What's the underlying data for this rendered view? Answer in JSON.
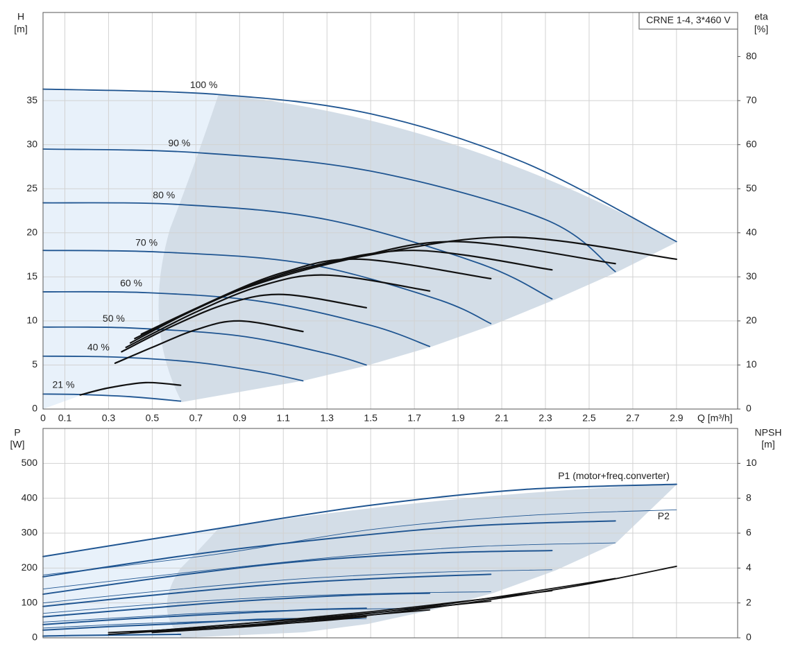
{
  "chart_data": [
    {
      "type": "line",
      "title": "CRNE 1-4, 3*460 V",
      "x_label": "Q [m³/h]",
      "y_label": "H",
      "y_unit": "[m]",
      "y2_label": "eta",
      "y2_unit": "[%]",
      "xlim": [
        0,
        3.18
      ],
      "xticks": [
        0,
        0.1,
        0.3,
        0.5,
        0.7,
        0.9,
        1.1,
        1.3,
        1.5,
        1.7,
        1.9,
        2.1,
        2.3,
        2.5,
        2.7,
        2.9
      ],
      "ylim": [
        0,
        45
      ],
      "yticks": [
        0,
        5,
        10,
        15,
        20,
        25,
        30,
        35
      ],
      "y2lim": [
        0,
        90
      ],
      "y2ticks": [
        0,
        10,
        20,
        30,
        40,
        50,
        60,
        70,
        80
      ],
      "grid": true,
      "series": [
        {
          "name": "100 %",
          "color": "#1f5591",
          "line_width": 1.8,
          "x": [
            0,
            0.8,
            1.5,
            2.2,
            2.9
          ],
          "values": [
            36.3,
            35.7,
            33.5,
            28,
            19
          ]
        },
        {
          "name": "90 %",
          "color": "#1f5591",
          "line_width": 1.8,
          "x": [
            0,
            0.7,
            1.5,
            2.3,
            2.62
          ],
          "values": [
            29.5,
            29.1,
            27,
            21.5,
            15.6
          ]
        },
        {
          "name": "80 %",
          "color": "#1f5591",
          "line_width": 1.8,
          "x": [
            0,
            0.63,
            1.3,
            2.0,
            2.33
          ],
          "values": [
            23.4,
            23.2,
            21.5,
            16.5,
            12.5
          ]
        },
        {
          "name": "70 %",
          "color": "#1f5591",
          "line_width": 1.8,
          "x": [
            0,
            0.55,
            1.2,
            1.8,
            2.05
          ],
          "values": [
            18,
            17.8,
            16.5,
            12.5,
            9.7
          ]
        },
        {
          "name": "60 %",
          "color": "#1f5591",
          "line_width": 1.8,
          "x": [
            0,
            0.48,
            1.0,
            1.5,
            1.77
          ],
          "values": [
            13.3,
            13.2,
            12.2,
            9.5,
            7.1
          ]
        },
        {
          "name": "50 %",
          "color": "#1f5591",
          "line_width": 1.8,
          "x": [
            0,
            0.4,
            0.9,
            1.3,
            1.48
          ],
          "values": [
            9.3,
            9.2,
            8.3,
            6.3,
            5
          ]
        },
        {
          "name": "40 %",
          "color": "#1f5591",
          "line_width": 1.8,
          "x": [
            0,
            0.33,
            0.7,
            1.0,
            1.19
          ],
          "values": [
            6,
            5.9,
            5.3,
            4.2,
            3.2
          ]
        },
        {
          "name": "21 %",
          "color": "#1f5591",
          "line_width": 1.8,
          "x": [
            0,
            0.17,
            0.4,
            0.63
          ],
          "values": [
            1.7,
            1.65,
            1.4,
            0.9
          ]
        },
        {
          "color": "#111111",
          "line_width": 2.2,
          "axis": "y2",
          "x": [
            0.5,
            1.0,
            1.5,
            2.15,
            2.9
          ],
          "values": [
            18,
            29,
            35,
            39,
            34
          ]
        },
        {
          "color": "#111111",
          "line_width": 2.2,
          "axis": "y2",
          "x": [
            0.45,
            0.9,
            1.4,
            1.9,
            2.62
          ],
          "values": [
            17,
            27,
            34,
            38,
            33
          ]
        },
        {
          "color": "#111111",
          "line_width": 2.2,
          "axis": "y2",
          "x": [
            0.42,
            0.8,
            1.2,
            1.7,
            2.33
          ],
          "values": [
            16,
            25,
            32,
            36,
            31.6
          ]
        },
        {
          "color": "#111111",
          "line_width": 2.2,
          "axis": "y2",
          "x": [
            0.4,
            0.75,
            1.1,
            1.45,
            2.05
          ],
          "values": [
            15,
            24,
            31,
            34,
            29.6
          ]
        },
        {
          "color": "#111111",
          "line_width": 2.2,
          "axis": "y2",
          "x": [
            0.38,
            0.7,
            1.0,
            1.3,
            1.77
          ],
          "values": [
            14,
            22,
            28,
            30.4,
            26.8
          ]
        },
        {
          "color": "#111111",
          "line_width": 2.2,
          "axis": "y2",
          "x": [
            0.36,
            0.6,
            0.85,
            1.1,
            1.48
          ],
          "values": [
            13,
            19,
            24,
            26,
            23
          ]
        },
        {
          "color": "#111111",
          "line_width": 2.2,
          "axis": "y2",
          "x": [
            0.33,
            0.5,
            0.7,
            0.9,
            1.19
          ],
          "values": [
            10.4,
            14,
            18,
            20,
            17.6
          ]
        },
        {
          "color": "#111111",
          "line_width": 2.2,
          "axis": "y2",
          "x": [
            0.17,
            0.3,
            0.47,
            0.63
          ],
          "values": [
            3.2,
            4.8,
            6,
            5.4
          ]
        }
      ]
    },
    {
      "type": "line",
      "y_label": "P",
      "y_unit": "[W]",
      "y2_label": "NPSH",
      "y2_unit": "[m]",
      "xlim": [
        0,
        3.18
      ],
      "ylim": [
        0,
        600
      ],
      "yticks": [
        0,
        100,
        200,
        300,
        400,
        500
      ],
      "y2lim": [
        0,
        12
      ],
      "y2ticks": [
        0,
        2,
        4,
        6,
        8,
        10
      ],
      "grid": true,
      "series": [
        {
          "name": "P1 (motor+freq.converter)",
          "color": "#1f5591",
          "line_width": 2,
          "x": [
            0,
            0.8,
            1.5,
            2.2,
            2.9
          ],
          "values": [
            233,
            313,
            380,
            425,
            440
          ]
        },
        {
          "color": "#1f5591",
          "line_width": 2,
          "x": [
            0,
            0.7,
            1.4,
            2.0,
            2.62
          ],
          "values": [
            175,
            240,
            290,
            322,
            335
          ]
        },
        {
          "color": "#1f5591",
          "line_width": 2,
          "x": [
            0,
            0.63,
            1.2,
            1.8,
            2.33
          ],
          "values": [
            125,
            180,
            220,
            243,
            250
          ]
        },
        {
          "color": "#1f5591",
          "line_width": 2,
          "x": [
            0,
            0.55,
            1.1,
            1.6,
            2.05
          ],
          "values": [
            90,
            125,
            155,
            172,
            182
          ]
        },
        {
          "color": "#1f5591",
          "line_width": 2,
          "x": [
            0,
            0.48,
            0.9,
            1.4,
            1.77
          ],
          "values": [
            60,
            85,
            105,
            122,
            128
          ]
        },
        {
          "color": "#1f5591",
          "line_width": 2,
          "x": [
            0,
            0.4,
            0.8,
            1.2,
            1.48
          ],
          "values": [
            38,
            55,
            68,
            80,
            85
          ]
        },
        {
          "color": "#1f5591",
          "line_width": 2,
          "x": [
            0,
            0.33,
            0.6,
            0.95,
            1.19
          ],
          "values": [
            22,
            33,
            40,
            52,
            55
          ]
        },
        {
          "color": "#1f5591",
          "line_width": 2,
          "x": [
            0,
            0.17,
            0.63
          ],
          "values": [
            5,
            7,
            10
          ]
        },
        {
          "name": "P2",
          "color": "#1f5591",
          "line_width": 0.9,
          "x": [
            0,
            0.8,
            1.5,
            2.2,
            2.9
          ],
          "values": [
            180,
            240,
            310,
            350,
            367
          ]
        },
        {
          "color": "#1f5591",
          "line_width": 0.9,
          "x": [
            0,
            0.7,
            1.4,
            2.0,
            2.62
          ],
          "values": [
            140,
            190,
            235,
            262,
            272
          ]
        },
        {
          "color": "#1f5591",
          "line_width": 0.9,
          "x": [
            0,
            0.63,
            1.2,
            1.8,
            2.33
          ],
          "values": [
            100,
            140,
            170,
            188,
            195
          ]
        },
        {
          "color": "#1f5591",
          "line_width": 0.9,
          "x": [
            0,
            0.55,
            1.1,
            1.6,
            2.05
          ],
          "values": [
            70,
            98,
            118,
            128,
            132
          ]
        },
        {
          "color": "#1f5591",
          "line_width": 0.9,
          "x": [
            0,
            0.48,
            0.9,
            1.4,
            1.77
          ],
          "values": [
            45,
            62,
            75,
            82,
            85
          ]
        },
        {
          "color": "#1f5591",
          "line_width": 0.9,
          "x": [
            0,
            0.4,
            0.8,
            1.2,
            1.48
          ],
          "values": [
            28,
            40,
            48,
            52,
            55
          ]
        },
        {
          "color": "#111111",
          "line_width": 1.8,
          "axis": "y2",
          "x": [
            0.5,
            1.0,
            1.5,
            2.0,
            2.5,
            2.9
          ],
          "values": [
            0.3,
            0.7,
            1.3,
            2.1,
            3.1,
            4.1
          ]
        },
        {
          "color": "#111111",
          "line_width": 1.8,
          "axis": "y2",
          "x": [
            0.5,
            1.0,
            1.5,
            2.0,
            2.62
          ],
          "values": [
            0.35,
            0.8,
            1.4,
            2.2,
            3.4
          ]
        },
        {
          "color": "#111111",
          "line_width": 1.8,
          "axis": "y2",
          "x": [
            0.5,
            1.0,
            1.5,
            2.0,
            2.33
          ],
          "values": [
            0.4,
            0.9,
            1.5,
            2.2,
            2.7
          ]
        },
        {
          "color": "#111111",
          "line_width": 1.8,
          "axis": "y2",
          "x": [
            0.4,
            0.9,
            1.4,
            2.05
          ],
          "values": [
            0.3,
            0.8,
            1.3,
            2.1
          ]
        },
        {
          "color": "#111111",
          "line_width": 1.8,
          "axis": "y2",
          "x": [
            0.3,
            0.8,
            1.3,
            1.77
          ],
          "values": [
            0.2,
            0.6,
            1.1,
            1.6
          ]
        },
        {
          "color": "#111111",
          "line_width": 1.8,
          "axis": "y2",
          "x": [
            0.3,
            0.8,
            1.2,
            1.48
          ],
          "values": [
            0.3,
            0.6,
            0.9,
            1.2
          ]
        }
      ]
    }
  ]
}
